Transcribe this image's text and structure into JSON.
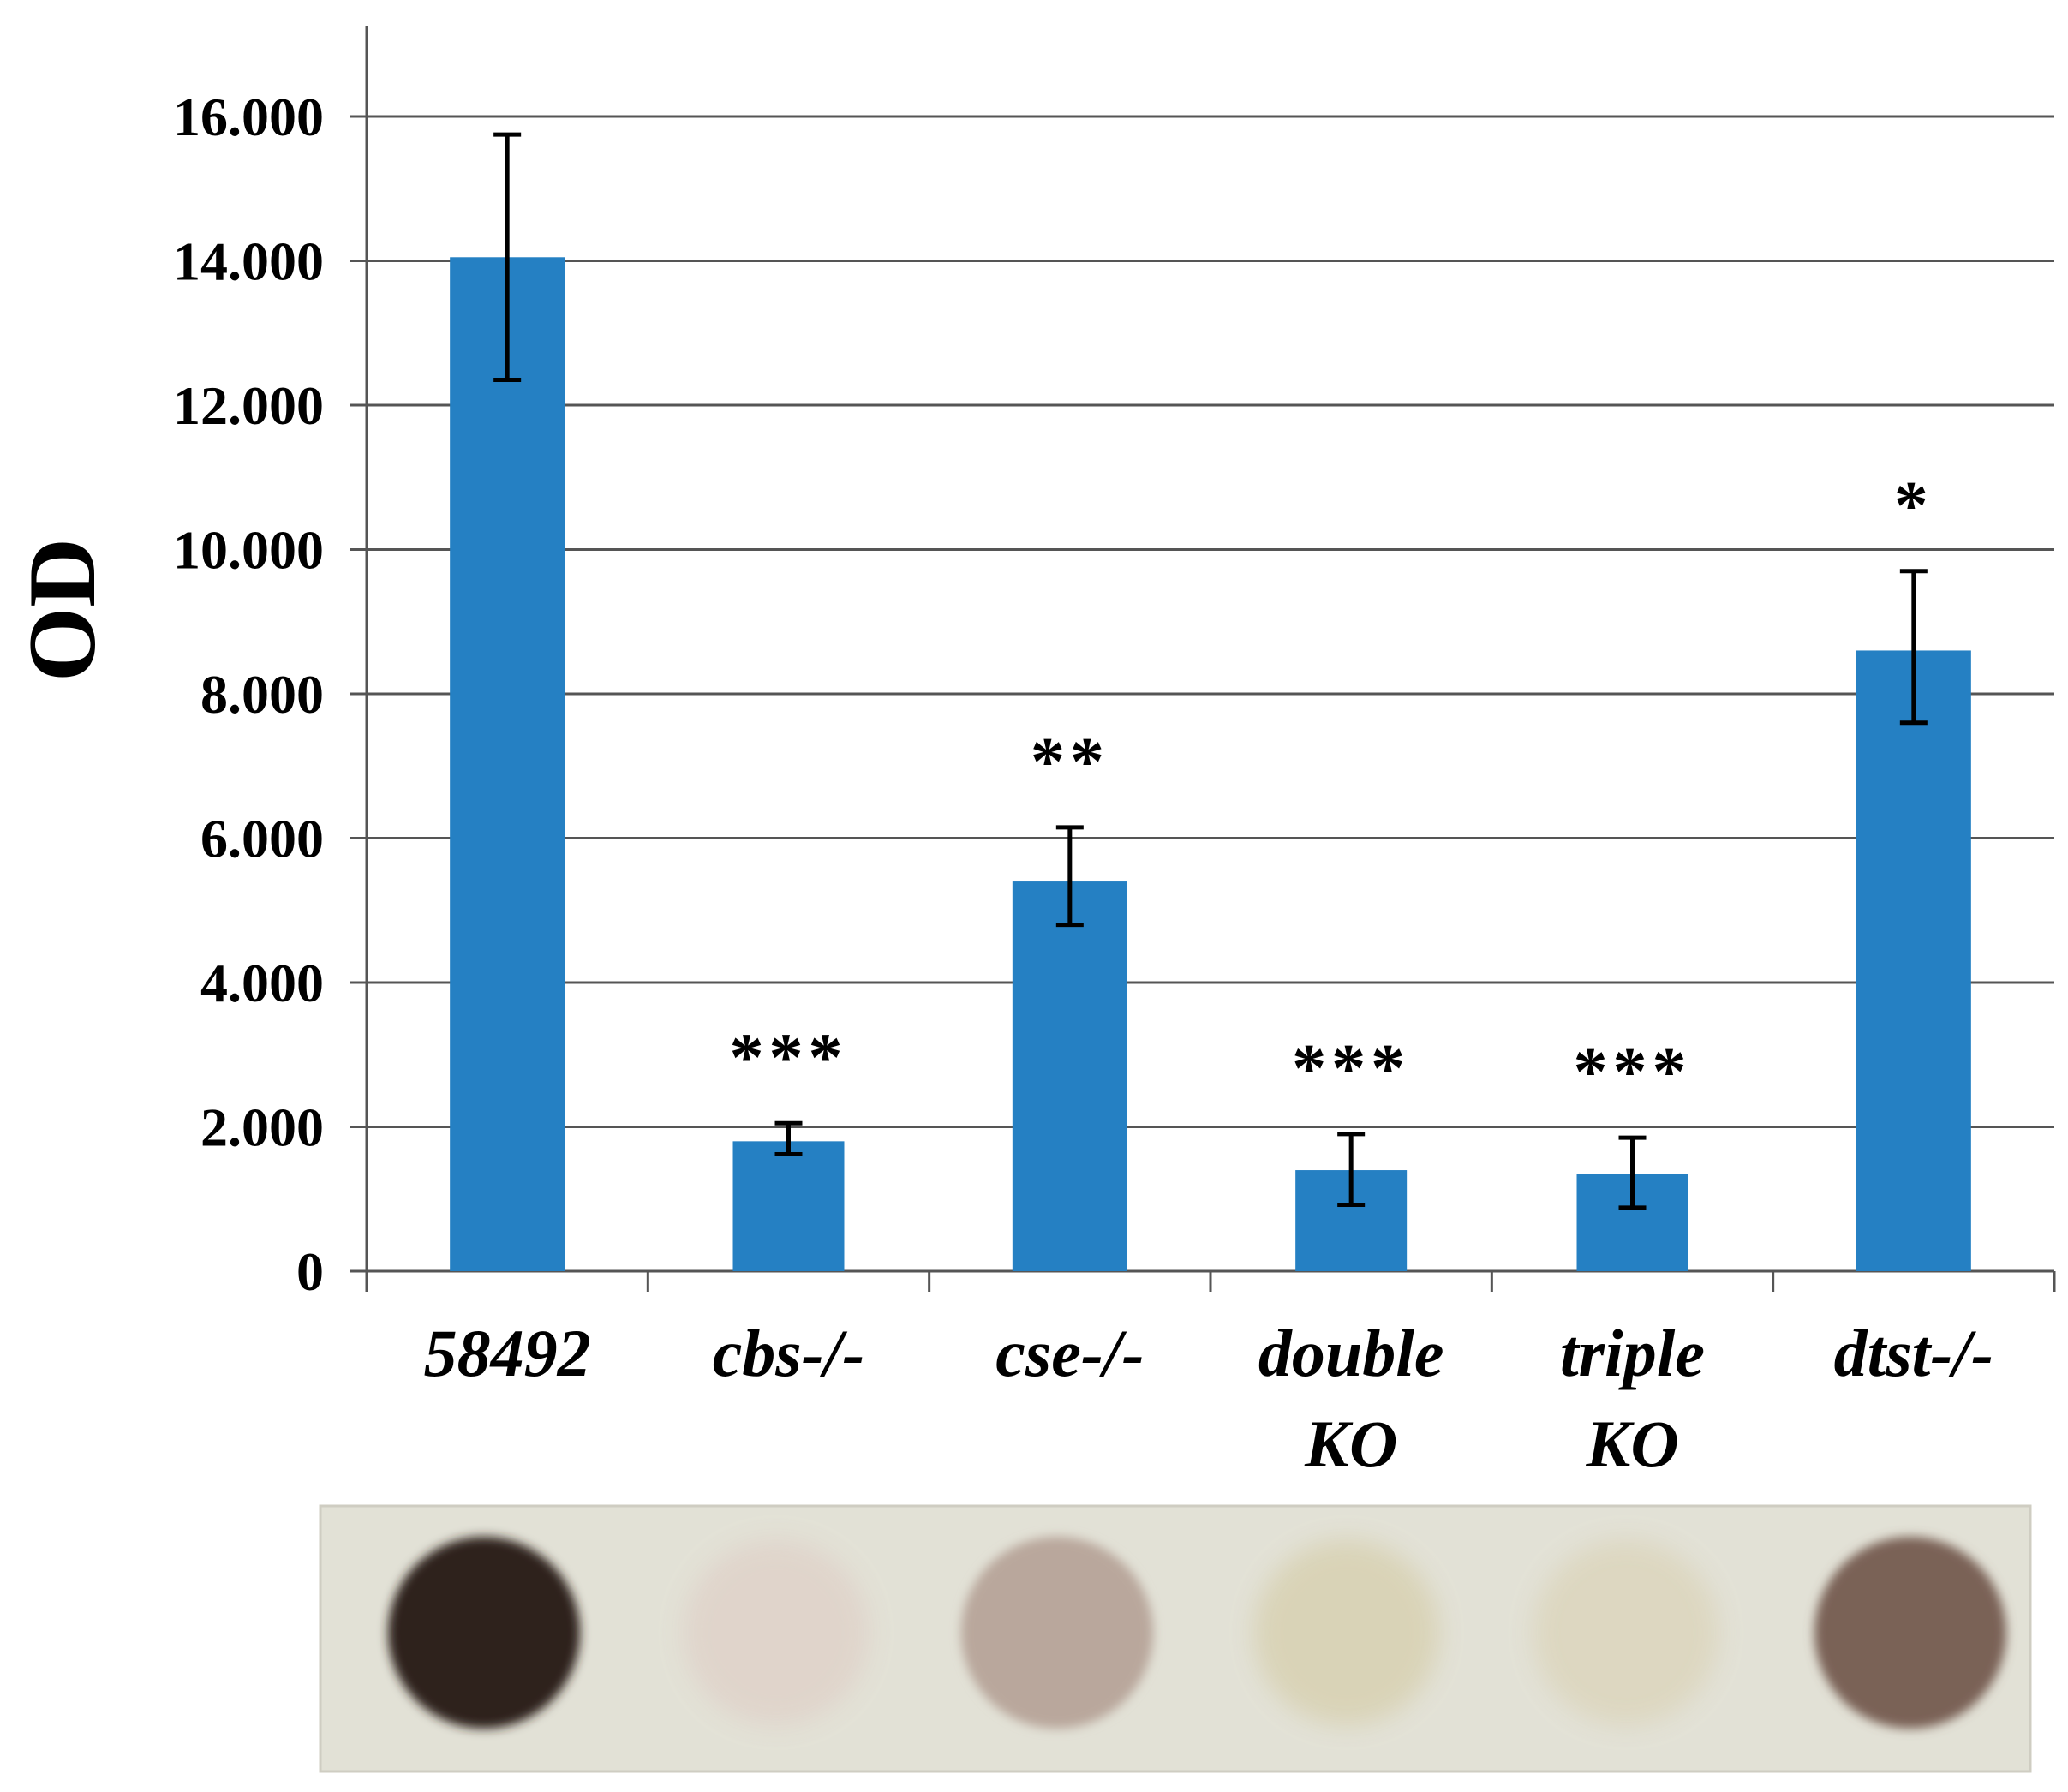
{
  "chart_data": {
    "type": "bar",
    "title": "",
    "xlabel": "",
    "ylabel": "OD",
    "ylim": [
      0,
      16000
    ],
    "ytick_values": [
      0,
      2000,
      4000,
      6000,
      8000,
      10000,
      12000,
      14000,
      16000
    ],
    "ytick_labels": [
      "0",
      "2.000",
      "4.000",
      "6.000",
      "8.000",
      "10.000",
      "12.000",
      "14.000",
      "16.000"
    ],
    "grid": true,
    "categories": [
      [
        "58492"
      ],
      [
        "cbs-/-"
      ],
      [
        "cse-/-"
      ],
      [
        "double",
        "KO"
      ],
      [
        "triple",
        "KO"
      ],
      [
        "dtst-/-"
      ]
    ],
    "values": [
      14050,
      1800,
      5400,
      1400,
      1350,
      8600
    ],
    "error_low": [
      12350,
      1620,
      4800,
      920,
      880,
      7600
    ],
    "error_high": [
      15750,
      2050,
      6150,
      1900,
      1850,
      9700
    ],
    "significance": [
      "",
      "***",
      "**",
      "***",
      "***",
      "*"
    ],
    "bar_color": "#2580c3",
    "dot_blot": {
      "background": "#e2e1d6",
      "spots": [
        {
          "color": "#2e211c",
          "intensity": 1.0
        },
        {
          "color": "#e0d4cb",
          "intensity": 0.35
        },
        {
          "color": "#b9a79c",
          "intensity": 0.6
        },
        {
          "color": "#d9d3b6",
          "intensity": 0.3
        },
        {
          "color": "#ddd7c0",
          "intensity": 0.28
        },
        {
          "color": "#7a6257",
          "intensity": 0.8
        }
      ]
    }
  }
}
